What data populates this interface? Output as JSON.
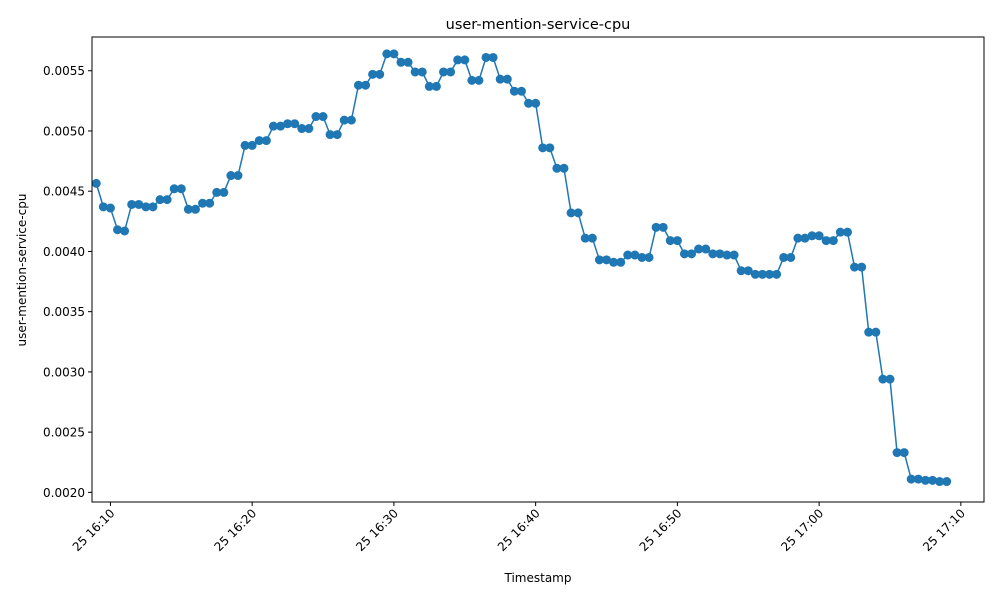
{
  "chart_data": {
    "type": "line",
    "title": "user-mention-service-cpu",
    "xlabel": "Timestamp",
    "ylabel": "user-mention-service-cpu",
    "x_date_prefix": "25",
    "x_ticks": [
      "16:10",
      "16:20",
      "16:30",
      "16:40",
      "16:50",
      "17:00",
      "17:10"
    ],
    "y_ticks": [
      "0.0020",
      "0.0025",
      "0.0030",
      "0.0035",
      "0.0040",
      "0.0045",
      "0.0050",
      "0.0055"
    ],
    "xlim": [
      "16:08:42",
      "17:11:38"
    ],
    "ylim": [
      0.00192,
      0.00578
    ],
    "grid": false,
    "legend": "none",
    "line_color": "#1f77b4",
    "marker": "circle",
    "series": [
      {
        "x": [
          "16:09:00",
          "16:09:30",
          "16:10:00",
          "16:10:30",
          "16:11:00",
          "16:11:30",
          "16:12:00",
          "16:12:30",
          "16:13:00",
          "16:13:30",
          "16:14:00",
          "16:14:30",
          "16:15:00",
          "16:15:30",
          "16:16:00",
          "16:16:30",
          "16:17:00",
          "16:17:30",
          "16:18:00",
          "16:18:30",
          "16:19:00",
          "16:19:30",
          "16:20:00",
          "16:20:30",
          "16:21:00",
          "16:21:30",
          "16:22:00",
          "16:22:30",
          "16:23:00",
          "16:23:30",
          "16:24:00",
          "16:24:30",
          "16:25:00",
          "16:25:30",
          "16:26:00",
          "16:26:30",
          "16:27:00",
          "16:27:30",
          "16:28:00",
          "16:28:30",
          "16:29:00",
          "16:29:30",
          "16:30:00",
          "16:30:30",
          "16:31:00",
          "16:31:30",
          "16:32:00",
          "16:32:30",
          "16:33:00",
          "16:33:30",
          "16:34:00",
          "16:34:30",
          "16:35:00",
          "16:35:30",
          "16:36:00",
          "16:36:30",
          "16:37:00",
          "16:37:30",
          "16:38:00",
          "16:38:30",
          "16:39:00",
          "16:39:30",
          "16:40:00",
          "16:40:30",
          "16:41:00",
          "16:41:30",
          "16:42:00",
          "16:42:30",
          "16:43:00",
          "16:43:30",
          "16:44:00",
          "16:44:30",
          "16:45:00",
          "16:45:30",
          "16:46:00",
          "16:46:30",
          "16:47:00",
          "16:47:30",
          "16:48:00",
          "16:48:30",
          "16:49:00",
          "16:49:30",
          "16:50:00",
          "16:50:30",
          "16:51:00",
          "16:51:30",
          "16:52:00",
          "16:52:30",
          "16:53:00",
          "16:53:30",
          "16:54:00",
          "16:54:30",
          "16:55:00",
          "16:55:30",
          "16:56:00",
          "16:56:30",
          "16:57:00",
          "16:57:30",
          "16:58:00",
          "16:58:30",
          "16:59:00",
          "16:59:30",
          "17:00:00",
          "17:00:30",
          "17:01:00",
          "17:01:30",
          "17:02:00",
          "17:02:30",
          "17:03:00",
          "17:03:30",
          "17:04:00",
          "17:04:30",
          "17:05:00",
          "17:05:30",
          "17:06:00",
          "17:06:30",
          "17:07:00",
          "17:07:30",
          "17:08:00",
          "17:08:30",
          "17:09:00"
        ],
        "values": [
          0.004565,
          0.00437,
          0.00436,
          0.00418,
          0.00417,
          0.00439,
          0.00439,
          0.00437,
          0.00437,
          0.00443,
          0.00443,
          0.00452,
          0.00452,
          0.00435,
          0.00435,
          0.0044,
          0.0044,
          0.00449,
          0.00449,
          0.00463,
          0.00463,
          0.00488,
          0.00488,
          0.00492,
          0.00492,
          0.00504,
          0.00504,
          0.00506,
          0.00506,
          0.00502,
          0.00502,
          0.00512,
          0.00512,
          0.00497,
          0.00497,
          0.00509,
          0.00509,
          0.00538,
          0.00538,
          0.00547,
          0.00547,
          0.00564,
          0.00564,
          0.00557,
          0.00557,
          0.00549,
          0.00549,
          0.00537,
          0.00537,
          0.00549,
          0.00549,
          0.00559,
          0.00559,
          0.00542,
          0.00542,
          0.00561,
          0.00561,
          0.00543,
          0.00543,
          0.00533,
          0.00533,
          0.00523,
          0.00523,
          0.00486,
          0.00486,
          0.00469,
          0.00469,
          0.00432,
          0.00432,
          0.00411,
          0.00411,
          0.00393,
          0.00393,
          0.00391,
          0.00391,
          0.00397,
          0.00397,
          0.00395,
          0.00395,
          0.0042,
          0.0042,
          0.00409,
          0.00409,
          0.00398,
          0.00398,
          0.00402,
          0.00402,
          0.00398,
          0.00398,
          0.00397,
          0.00397,
          0.00384,
          0.00384,
          0.00381,
          0.00381,
          0.00381,
          0.00381,
          0.00395,
          0.00395,
          0.00411,
          0.00411,
          0.00413,
          0.00413,
          0.00409,
          0.00409,
          0.00416,
          0.00416,
          0.00387,
          0.00387,
          0.00333,
          0.00333,
          0.00294,
          0.00294,
          0.00233,
          0.00233,
          0.00211,
          0.00211,
          0.0021,
          0.0021,
          0.00209,
          0.00209
        ]
      }
    ]
  }
}
